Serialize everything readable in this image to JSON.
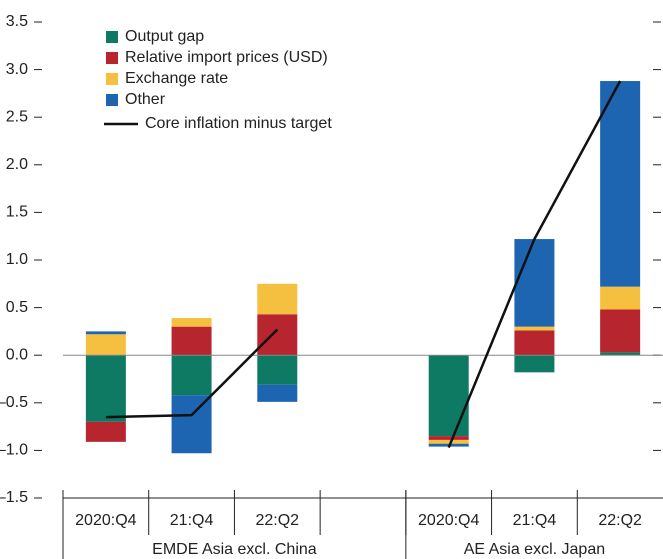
{
  "chart_data": {
    "type": "bar",
    "categories": [
      "2020:Q4",
      "21:Q4",
      "22:Q2",
      null,
      "2020:Q4",
      "21:Q4",
      "22:Q2"
    ],
    "group_labels": [
      "EMDE Asia excl. China",
      "AE Asia excl. Japan"
    ],
    "series": [
      {
        "name": "Output gap",
        "color": "#0e7a63",
        "values": [
          -0.7,
          -0.42,
          -0.31,
          null,
          -0.85,
          -0.18,
          0.03
        ]
      },
      {
        "name": "Relative import prices (USD)",
        "color": "#b7252e",
        "values": [
          -0.21,
          0.3,
          0.43,
          null,
          -0.04,
          0.26,
          0.45
        ]
      },
      {
        "name": "Exchange rate",
        "color": "#f5bf3f",
        "values": [
          0.22,
          0.09,
          0.32,
          null,
          -0.04,
          0.04,
          0.24
        ]
      },
      {
        "name": "Other",
        "color": "#1d65b0",
        "values": [
          0.03,
          -0.61,
          -0.18,
          null,
          -0.03,
          0.92,
          2.16
        ]
      }
    ],
    "line": {
      "name": "Core inflation minus target",
      "color": "#111111",
      "values": [
        -0.65,
        -0.63,
        0.27,
        null,
        -0.97,
        1.22,
        2.88
      ]
    },
    "ylim": [
      -1.5,
      3.5
    ],
    "yticks": [
      {
        "value": -1.5,
        "label": "–1.5"
      },
      {
        "value": -1.0,
        "label": "–1.0"
      },
      {
        "value": -0.5,
        "label": "–0.5"
      },
      {
        "value": 0,
        "label": "0.0"
      },
      0.5,
      {
        "value": 1.0,
        "label": "1.0"
      },
      1.5,
      {
        "value": 2.0,
        "label": "2.0"
      },
      2.5,
      {
        "value": 3.0,
        "label": "3.0"
      },
      3.5
    ]
  }
}
